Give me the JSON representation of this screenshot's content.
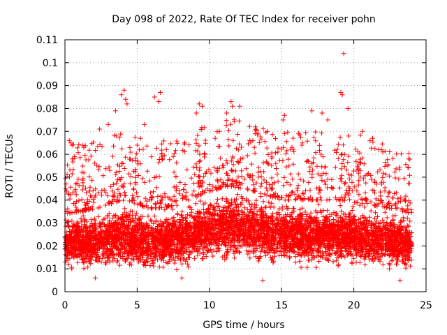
{
  "chart_data": {
    "type": "scatter",
    "title": "Day 098 of 2022, Rate Of TEC Index for receiver pohn",
    "xlabel": "GPS time / hours",
    "ylabel": "ROTI / TECUs",
    "xlim": [
      0,
      25
    ],
    "ylim": [
      0,
      0.11
    ],
    "xticks": [
      0,
      5,
      10,
      15,
      20,
      25
    ],
    "xtick_labels": [
      "0",
      "5",
      "10",
      "15",
      "20",
      "25"
    ],
    "yticks": [
      0,
      0.01,
      0.02,
      0.03,
      0.04,
      0.05,
      0.06,
      0.07,
      0.08,
      0.09,
      0.1,
      0.11
    ],
    "ytick_labels": [
      "0",
      "0.01",
      "0.02",
      "0.03",
      "0.04",
      "0.05",
      "0.06",
      "0.07",
      "0.08",
      "0.09",
      "0.1",
      "0.11"
    ],
    "grid": true,
    "marker": "+",
    "color": "#ff0000",
    "series": [
      {
        "name": "ROTI",
        "x_range": [
          0,
          24
        ],
        "band": {
          "x": [
            0,
            2,
            4,
            6,
            8,
            10,
            11.5,
            13,
            15,
            17,
            19,
            21,
            23,
            24
          ],
          "low": [
            0.009,
            0.008,
            0.008,
            0.008,
            0.009,
            0.011,
            0.012,
            0.011,
            0.01,
            0.009,
            0.009,
            0.009,
            0.008,
            0.009
          ],
          "high": [
            0.034,
            0.036,
            0.04,
            0.036,
            0.038,
            0.044,
            0.046,
            0.044,
            0.04,
            0.04,
            0.04,
            0.038,
            0.036,
            0.034
          ]
        },
        "outliers": [
          [
            0.3,
            0.066
          ],
          [
            0.4,
            0.065
          ],
          [
            1.2,
            0.064
          ],
          [
            1.3,
            0.063
          ],
          [
            2.4,
            0.071
          ],
          [
            3.0,
            0.073
          ],
          [
            3.5,
            0.079
          ],
          [
            3.9,
            0.086
          ],
          [
            4.1,
            0.088
          ],
          [
            4.2,
            0.084
          ],
          [
            4.3,
            0.082
          ],
          [
            5.5,
            0.073
          ],
          [
            6.2,
            0.085
          ],
          [
            6.5,
            0.083
          ],
          [
            6.6,
            0.087
          ],
          [
            8.3,
            0.065
          ],
          [
            9.1,
            0.078
          ],
          [
            9.3,
            0.082
          ],
          [
            9.5,
            0.081
          ],
          [
            10.4,
            0.067
          ],
          [
            11.2,
            0.078
          ],
          [
            11.5,
            0.083
          ],
          [
            11.6,
            0.081
          ],
          [
            12.1,
            0.081
          ],
          [
            13.2,
            0.071
          ],
          [
            14.0,
            0.07
          ],
          [
            15.1,
            0.075
          ],
          [
            15.2,
            0.077
          ],
          [
            17.1,
            0.079
          ],
          [
            17.8,
            0.078
          ],
          [
            18.2,
            0.075
          ],
          [
            19.1,
            0.087
          ],
          [
            19.2,
            0.086
          ],
          [
            19.3,
            0.104
          ],
          [
            19.6,
            0.08
          ],
          [
            20.6,
            0.07
          ],
          [
            21.3,
            0.067
          ],
          [
            23.8,
            0.058
          ],
          [
            0.5,
            0.058
          ],
          [
            5.0,
            0.064
          ],
          [
            7.5,
            0.059
          ],
          [
            12.8,
            0.066
          ],
          [
            16.4,
            0.064
          ],
          [
            22.0,
            0.061
          ],
          [
            13.7,
            0.005
          ],
          [
            23.2,
            0.005
          ],
          [
            8.1,
            0.006
          ],
          [
            2.1,
            0.006
          ]
        ]
      }
    ]
  }
}
